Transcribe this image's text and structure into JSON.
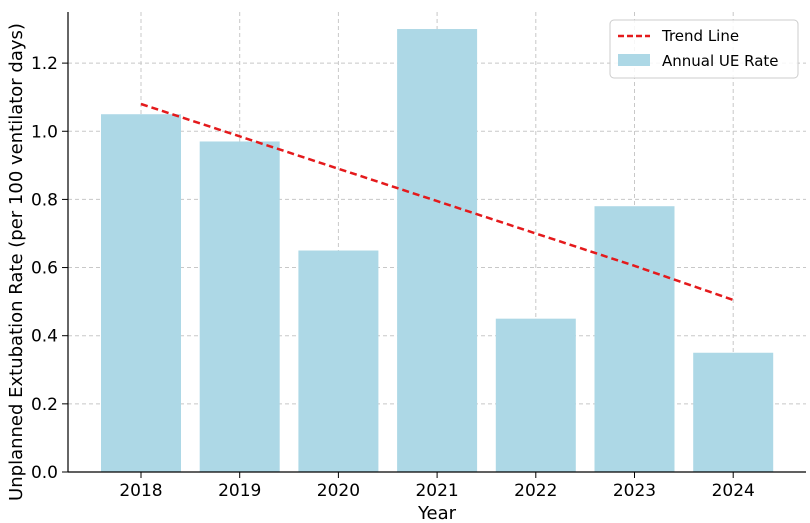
{
  "chart_data": {
    "type": "bar",
    "categories": [
      "2018",
      "2019",
      "2020",
      "2021",
      "2022",
      "2023",
      "2024"
    ],
    "series": [
      {
        "name": "Annual UE Rate",
        "type": "bar",
        "values": [
          1.05,
          0.97,
          0.65,
          1.3,
          0.45,
          0.78,
          0.35
        ],
        "color": "#add8e6"
      },
      {
        "name": "Trend Line",
        "type": "line",
        "style": "dashed",
        "values": [
          1.08,
          0.985,
          0.89,
          0.795,
          0.7,
          0.605,
          0.505
        ],
        "color": "#e41a1c"
      }
    ],
    "title": "",
    "xlabel": "Year",
    "ylabel": "Unplanned Extubation Rate (per 100 ventilator days)",
    "ylim": [
      0,
      1.35
    ],
    "yticks": [
      0.0,
      0.2,
      0.4,
      0.6,
      0.8,
      1.0,
      1.2
    ],
    "ytick_labels": [
      "0.0",
      "0.2",
      "0.4",
      "0.6",
      "0.8",
      "1.0",
      "1.2"
    ],
    "grid": true,
    "legend": {
      "position": "top-right",
      "entries": [
        "Trend Line",
        "Annual UE Rate"
      ]
    }
  }
}
